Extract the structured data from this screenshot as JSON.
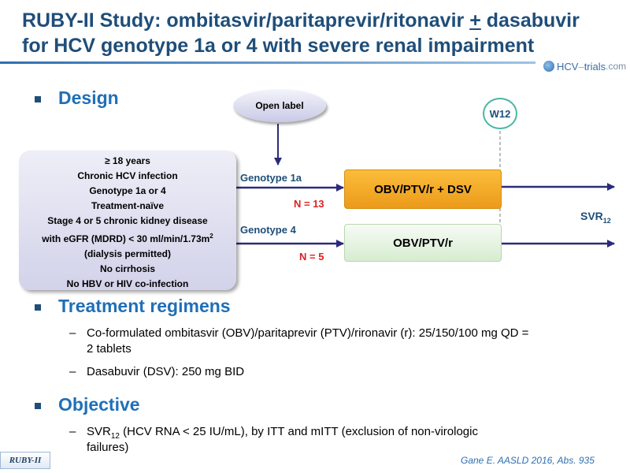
{
  "title": {
    "line1_a": "RUBY-II Study: ombitasvir/paritaprevir/ritonavir ",
    "line1_plus": "+",
    "line1_b": " dasabuvir",
    "line2": "for HCV genotype 1a or 4 with severe renal impairment"
  },
  "logo": {
    "prefix": "HCV",
    "dash": "–",
    "name": "trials",
    "suffix": ".com"
  },
  "sections": {
    "design": "Design",
    "regimens": "Treatment regimens",
    "objective": "Objective"
  },
  "diagram": {
    "open_label": "Open label",
    "week": "W12",
    "criteria": [
      "≥ 18 years",
      "Chronic HCV infection",
      "Genotype 1a or 4",
      "Treatment-naïve",
      "Stage 4 or 5 chronic kidney disease",
      "with eGFR (MDRD) < 30 ml/min/1.73m",
      "(dialysis permitted)",
      "No cirrhosis",
      "No HBV or HIV co-infection"
    ],
    "criteria_sup": "2",
    "arm1": {
      "genotype": "Genotype  1a",
      "n": "N = 13",
      "regimen": "OBV/PTV/r + DSV"
    },
    "arm2": {
      "genotype": "Genotype  4",
      "n": "N = 5",
      "regimen": "OBV/PTV/r"
    },
    "endpoint": "SVR",
    "endpoint_sub": "12"
  },
  "regimens": {
    "dash": "–",
    "item1": "Co-formulated ombitasvir (OBV)/paritaprevir (PTV)/rironavir (r): 25/150/100 mg QD =",
    "item1_cont": "2 tablets",
    "item2": "Dasabuvir (DSV): 250 mg BID"
  },
  "objective": {
    "prefix": "SVR",
    "sub": "12",
    "text": " (HCV RNA < 25 IU/mL), by ITT and mITT (exclusion of non-virologic",
    "cont": "failures)"
  },
  "footer": {
    "study_tag": "RUBY-II",
    "citation": "Gane E. AASLD 2016, Abs. 935"
  },
  "colors": {
    "title": "#1f4e79",
    "section": "#1f6fb8",
    "arrow": "#2b2b7a",
    "n_label": "#e02020",
    "arm1_fill": "#f5a623",
    "arm2_fill": "#e3f1de",
    "week_ring": "#4cb5a5"
  }
}
